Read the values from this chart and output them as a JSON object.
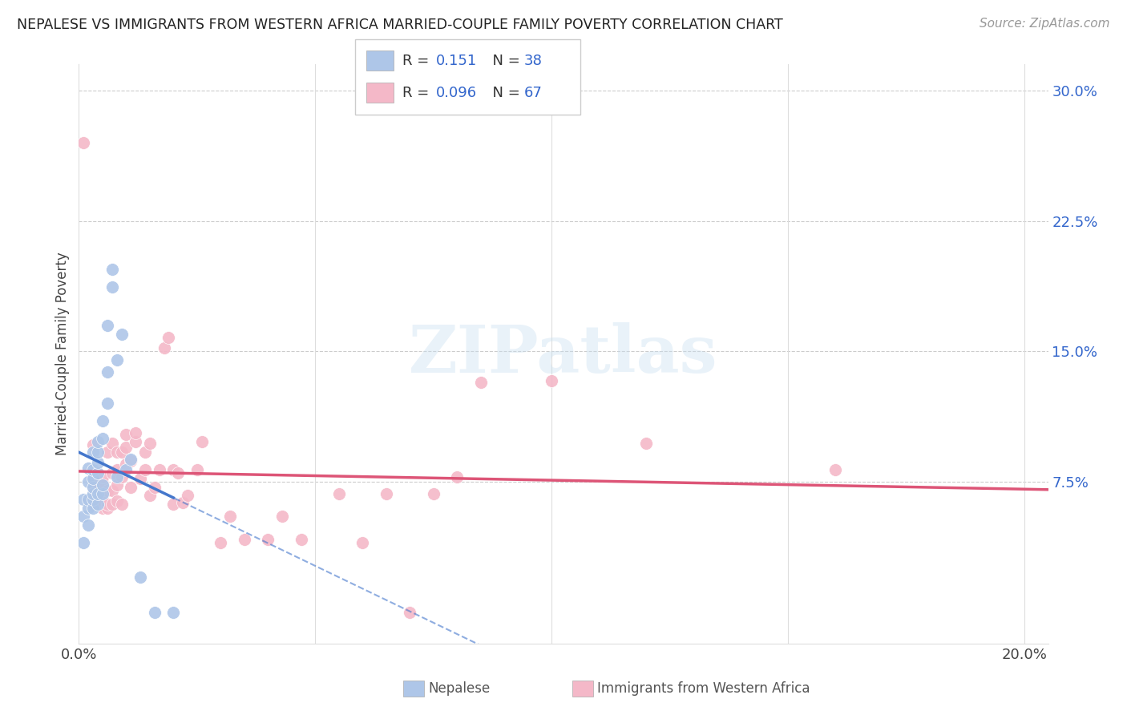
{
  "title": "NEPALESE VS IMMIGRANTS FROM WESTERN AFRICA MARRIED-COUPLE FAMILY POVERTY CORRELATION CHART",
  "source": "Source: ZipAtlas.com",
  "ylabel": "Married-Couple Family Poverty",
  "xlim": [
    0.0,
    0.205
  ],
  "ylim": [
    -0.018,
    0.315
  ],
  "legend1_R": "0.151",
  "legend1_N": "38",
  "legend2_R": "0.096",
  "legend2_N": "67",
  "color_blue": "#aec6e8",
  "color_pink": "#f4b8c8",
  "color_blue_line": "#4477cc",
  "color_pink_line": "#dd5577",
  "color_blue_text": "#3366cc",
  "watermark": "ZIPatlas",
  "nepalese_x": [
    0.001,
    0.001,
    0.001,
    0.002,
    0.002,
    0.002,
    0.002,
    0.002,
    0.003,
    0.003,
    0.003,
    0.003,
    0.003,
    0.003,
    0.003,
    0.004,
    0.004,
    0.004,
    0.004,
    0.004,
    0.004,
    0.005,
    0.005,
    0.005,
    0.005,
    0.006,
    0.006,
    0.006,
    0.007,
    0.007,
    0.008,
    0.008,
    0.009,
    0.01,
    0.011,
    0.013,
    0.016,
    0.02
  ],
  "nepalese_y": [
    0.055,
    0.065,
    0.04,
    0.06,
    0.065,
    0.075,
    0.083,
    0.05,
    0.06,
    0.065,
    0.068,
    0.072,
    0.077,
    0.082,
    0.092,
    0.062,
    0.068,
    0.08,
    0.086,
    0.092,
    0.098,
    0.068,
    0.073,
    0.1,
    0.11,
    0.12,
    0.138,
    0.165,
    0.187,
    0.197,
    0.078,
    0.145,
    0.16,
    0.082,
    0.088,
    0.02,
    0.0,
    0.0
  ],
  "western_africa_x": [
    0.001,
    0.002,
    0.003,
    0.003,
    0.003,
    0.004,
    0.004,
    0.004,
    0.005,
    0.005,
    0.005,
    0.005,
    0.005,
    0.006,
    0.006,
    0.006,
    0.006,
    0.007,
    0.007,
    0.007,
    0.007,
    0.008,
    0.008,
    0.008,
    0.008,
    0.009,
    0.009,
    0.009,
    0.01,
    0.01,
    0.01,
    0.011,
    0.011,
    0.012,
    0.012,
    0.013,
    0.014,
    0.014,
    0.015,
    0.015,
    0.016,
    0.017,
    0.018,
    0.019,
    0.02,
    0.02,
    0.021,
    0.022,
    0.023,
    0.025,
    0.026,
    0.03,
    0.032,
    0.035,
    0.04,
    0.043,
    0.047,
    0.055,
    0.06,
    0.065,
    0.07,
    0.075,
    0.08,
    0.085,
    0.1,
    0.12,
    0.16
  ],
  "western_africa_y": [
    0.27,
    0.065,
    0.062,
    0.072,
    0.096,
    0.062,
    0.068,
    0.073,
    0.06,
    0.064,
    0.068,
    0.074,
    0.078,
    0.06,
    0.062,
    0.07,
    0.092,
    0.062,
    0.07,
    0.08,
    0.097,
    0.064,
    0.073,
    0.082,
    0.092,
    0.062,
    0.078,
    0.092,
    0.085,
    0.095,
    0.102,
    0.072,
    0.087,
    0.098,
    0.103,
    0.077,
    0.082,
    0.092,
    0.067,
    0.097,
    0.072,
    0.082,
    0.152,
    0.158,
    0.062,
    0.082,
    0.08,
    0.063,
    0.067,
    0.082,
    0.098,
    0.04,
    0.055,
    0.042,
    0.042,
    0.055,
    0.042,
    0.068,
    0.04,
    0.068,
    0.0,
    0.068,
    0.078,
    0.132,
    0.133,
    0.097,
    0.082
  ]
}
